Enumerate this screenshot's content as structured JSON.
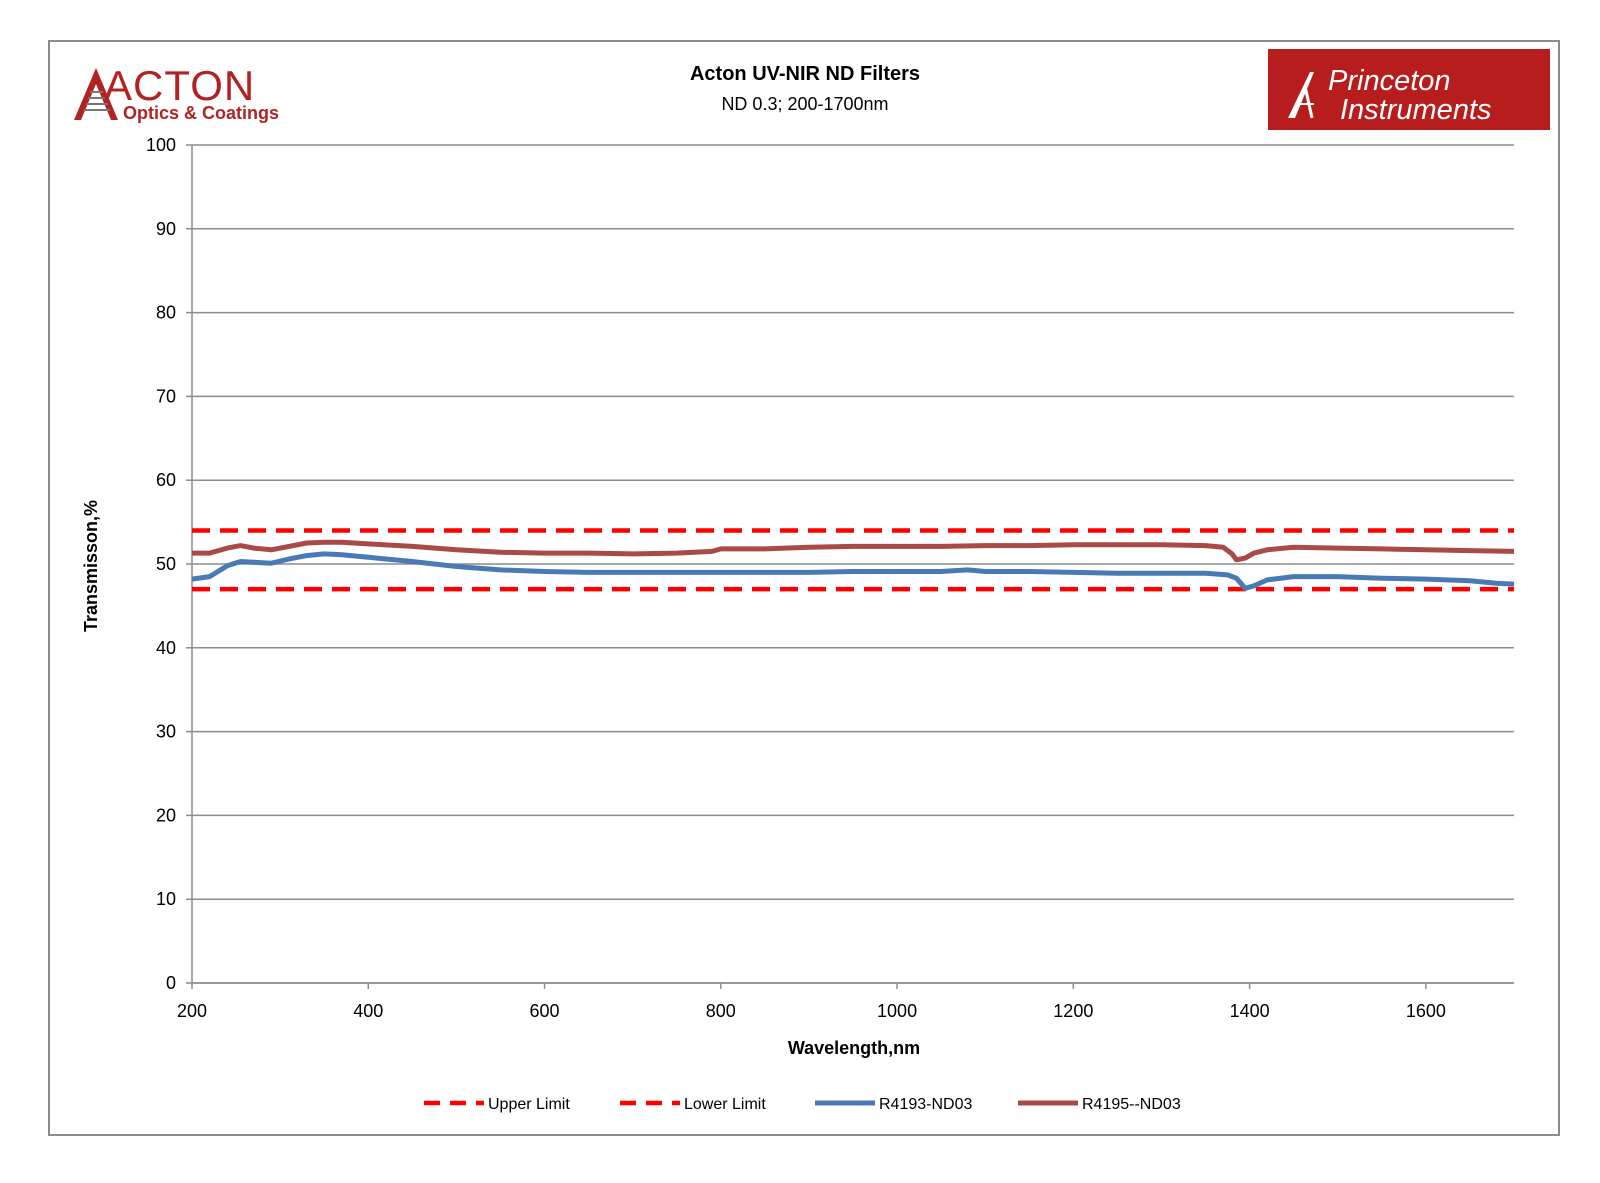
{
  "logos": {
    "left": {
      "name": "ACTON",
      "tagline": "Optics & Coatings"
    },
    "right": {
      "line1": "Princeton",
      "line2": "Instruments"
    }
  },
  "colors": {
    "upper_limit": "#ff0000",
    "lower_limit": "#ff0000",
    "r4193": "#4a7ab5",
    "r4195": "#a84a45",
    "grid": "#8c8c8c",
    "pi_red": "#b81d1d",
    "acton_red": "#b22222"
  },
  "chart_data": {
    "type": "line",
    "title": "Acton UV-NIR ND Filters",
    "subtitle": "ND 0.3;  200-1700nm",
    "xlabel": "Wavelength,nm",
    "ylabel": "Transmisson,%",
    "xlim": [
      200,
      1700
    ],
    "ylim": [
      0,
      100
    ],
    "xticks": [
      200,
      400,
      600,
      800,
      1000,
      1200,
      1400,
      1600
    ],
    "yticks": [
      0,
      10,
      20,
      30,
      40,
      50,
      60,
      70,
      80,
      90,
      100
    ],
    "grid": "horizontal",
    "legend_position": "bottom",
    "series": [
      {
        "name": "Upper Limit",
        "style": "dashed",
        "x": [
          200,
          1700
        ],
        "y": [
          54,
          54
        ]
      },
      {
        "name": "Lower Limit",
        "style": "dashed",
        "x": [
          200,
          1700
        ],
        "y": [
          47,
          47
        ]
      },
      {
        "name": "R4193-ND03",
        "style": "solid",
        "x": [
          200,
          220,
          240,
          255,
          270,
          290,
          310,
          330,
          350,
          370,
          400,
          450,
          500,
          550,
          600,
          650,
          700,
          750,
          800,
          850,
          900,
          950,
          1000,
          1050,
          1080,
          1100,
          1150,
          1200,
          1250,
          1300,
          1350,
          1375,
          1385,
          1395,
          1405,
          1420,
          1450,
          1500,
          1550,
          1600,
          1650,
          1680,
          1700
        ],
        "y": [
          48.2,
          48.5,
          49.8,
          50.3,
          50.2,
          50.1,
          50.6,
          51.0,
          51.2,
          51.1,
          50.8,
          50.3,
          49.7,
          49.3,
          49.1,
          49.0,
          49.0,
          49.0,
          49.0,
          49.0,
          49.0,
          49.1,
          49.1,
          49.1,
          49.3,
          49.1,
          49.1,
          49.0,
          48.9,
          48.9,
          48.9,
          48.7,
          48.3,
          47.1,
          47.4,
          48.1,
          48.5,
          48.5,
          48.3,
          48.2,
          48.0,
          47.7,
          47.6
        ]
      },
      {
        "name": "R4195--ND03",
        "style": "solid",
        "x": [
          200,
          220,
          240,
          255,
          270,
          290,
          310,
          330,
          350,
          370,
          400,
          450,
          500,
          550,
          600,
          650,
          700,
          750,
          790,
          800,
          850,
          900,
          950,
          1000,
          1050,
          1100,
          1150,
          1200,
          1250,
          1300,
          1350,
          1370,
          1380,
          1385,
          1395,
          1405,
          1420,
          1450,
          1500,
          1550,
          1600,
          1650,
          1700
        ],
        "y": [
          51.3,
          51.3,
          51.9,
          52.2,
          51.9,
          51.7,
          52.1,
          52.5,
          52.6,
          52.6,
          52.4,
          52.1,
          51.7,
          51.4,
          51.3,
          51.3,
          51.2,
          51.3,
          51.5,
          51.8,
          51.8,
          52.0,
          52.1,
          52.1,
          52.1,
          52.2,
          52.2,
          52.3,
          52.3,
          52.3,
          52.2,
          52.0,
          51.2,
          50.5,
          50.7,
          51.3,
          51.7,
          52.0,
          51.9,
          51.8,
          51.7,
          51.6,
          51.5
        ]
      }
    ]
  }
}
